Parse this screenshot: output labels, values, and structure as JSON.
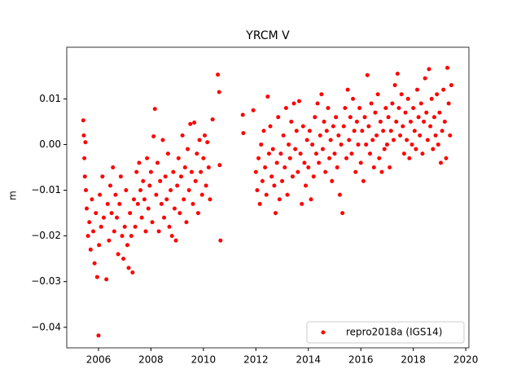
{
  "chart_data": {
    "type": "scatter",
    "title": "YRCM V",
    "y_label": "m",
    "xlim": [
      2004.79,
      2020.12
    ],
    "ylim": [
      -0.0445,
      0.0213
    ],
    "xticks": [
      2006,
      2008,
      2010,
      2012,
      2014,
      2016,
      2018,
      2020
    ],
    "yticks": [
      {
        "value": -0.04,
        "label": "−0.04"
      },
      {
        "value": -0.03,
        "label": "−0.03"
      },
      {
        "value": -0.02,
        "label": "−0.02"
      },
      {
        "value": -0.01,
        "label": "−0.01"
      },
      {
        "value": 0,
        "label": "0.00"
      },
      0.01
    ],
    "legend_position": "lower right",
    "x": [
      2005.42,
      2005.44,
      2005.46,
      2005.48,
      2005.5,
      2005.52,
      2005.55,
      2005.6,
      2005.65,
      2005.7,
      2005.75,
      2005.8,
      2005.85,
      2005.9,
      2005.95,
      2006.0,
      2006.02,
      2006.05,
      2006.1,
      2006.15,
      2006.2,
      2006.3,
      2006.35,
      2006.4,
      2006.45,
      2006.5,
      2006.55,
      2006.6,
      2006.65,
      2006.7,
      2006.75,
      2006.8,
      2006.85,
      2006.9,
      2006.95,
      2007.0,
      2007.05,
      2007.1,
      2007.15,
      2007.2,
      2007.25,
      2007.3,
      2007.35,
      2007.4,
      2007.45,
      2007.5,
      2007.55,
      2007.6,
      2007.65,
      2007.7,
      2007.75,
      2007.8,
      2007.85,
      2007.9,
      2007.95,
      2008.0,
      2008.05,
      2008.1,
      2008.15,
      2008.2,
      2008.25,
      2008.3,
      2008.35,
      2008.4,
      2008.45,
      2008.5,
      2008.55,
      2008.6,
      2008.65,
      2008.7,
      2008.75,
      2008.8,
      2008.85,
      2008.9,
      2008.95,
      2009.0,
      2009.05,
      2009.1,
      2009.15,
      2009.2,
      2009.25,
      2009.3,
      2009.35,
      2009.4,
      2009.45,
      2009.5,
      2009.55,
      2009.6,
      2009.65,
      2009.7,
      2009.75,
      2009.8,
      2009.85,
      2009.9,
      2009.95,
      2010.0,
      2010.05,
      2010.1,
      2010.15,
      2010.2,
      2010.25,
      2010.35,
      2010.55,
      2010.6,
      2010.62,
      2010.65,
      2011.5,
      2011.52,
      2011.9,
      2012.0,
      2012.05,
      2012.1,
      2012.15,
      2012.2,
      2012.25,
      2012.3,
      2012.35,
      2012.4,
      2012.45,
      2012.5,
      2012.55,
      2012.6,
      2012.65,
      2012.7,
      2012.75,
      2012.8,
      2012.85,
      2012.9,
      2012.95,
      2013.0,
      2013.05,
      2013.1,
      2013.15,
      2013.2,
      2013.25,
      2013.3,
      2013.35,
      2013.4,
      2013.45,
      2013.5,
      2013.55,
      2013.6,
      2013.65,
      2013.7,
      2013.75,
      2013.8,
      2013.85,
      2013.9,
      2013.95,
      2014.0,
      2014.05,
      2014.1,
      2014.15,
      2014.2,
      2014.25,
      2014.3,
      2014.35,
      2014.4,
      2014.45,
      2014.5,
      2014.55,
      2014.6,
      2014.65,
      2014.7,
      2014.75,
      2014.8,
      2014.85,
      2014.9,
      2014.95,
      2015.0,
      2015.05,
      2015.1,
      2015.15,
      2015.2,
      2015.25,
      2015.3,
      2015.35,
      2015.4,
      2015.45,
      2015.5,
      2015.55,
      2015.6,
      2015.65,
      2015.7,
      2015.75,
      2015.8,
      2015.85,
      2015.9,
      2015.95,
      2016.0,
      2016.05,
      2016.1,
      2016.15,
      2016.2,
      2016.25,
      2016.3,
      2016.35,
      2016.4,
      2016.45,
      2016.5,
      2016.55,
      2016.6,
      2016.65,
      2016.7,
      2016.75,
      2016.8,
      2016.85,
      2016.9,
      2016.95,
      2017.0,
      2017.05,
      2017.1,
      2017.15,
      2017.2,
      2017.25,
      2017.3,
      2017.35,
      2017.4,
      2017.45,
      2017.5,
      2017.55,
      2017.6,
      2017.65,
      2017.7,
      2017.75,
      2017.8,
      2017.85,
      2017.9,
      2017.95,
      2018.0,
      2018.05,
      2018.1,
      2018.15,
      2018.2,
      2018.25,
      2018.3,
      2018.35,
      2018.4,
      2018.45,
      2018.5,
      2018.55,
      2018.6,
      2018.65,
      2018.7,
      2018.75,
      2018.8,
      2018.85,
      2018.9,
      2018.95,
      2019.0,
      2019.05,
      2019.1,
      2019.15,
      2019.2,
      2019.25,
      2019.3,
      2019.35,
      2019.4,
      2019.45
    ],
    "series": [
      {
        "name": "repro2018a (IGS14)",
        "color": "#ff0000",
        "values": [
          0.0053,
          0.002,
          -0.003,
          -0.007,
          0.0005,
          -0.01,
          -0.014,
          -0.02,
          -0.017,
          -0.023,
          -0.012,
          -0.019,
          -0.026,
          -0.015,
          -0.029,
          -0.0418,
          -0.022,
          -0.011,
          -0.018,
          -0.007,
          -0.016,
          -0.0295,
          -0.013,
          -0.021,
          -0.009,
          -0.015,
          -0.005,
          -0.019,
          -0.011,
          -0.016,
          -0.024,
          -0.013,
          -0.007,
          -0.02,
          -0.025,
          -0.018,
          -0.01,
          -0.022,
          -0.027,
          -0.015,
          -0.02,
          -0.028,
          -0.012,
          -0.018,
          -0.006,
          -0.013,
          -0.004,
          -0.01,
          -0.016,
          -0.008,
          -0.012,
          -0.019,
          -0.003,
          -0.014,
          -0.009,
          -0.006,
          -0.017,
          0.0018,
          0.0078,
          -0.011,
          -0.004,
          -0.019,
          -0.008,
          -0.013,
          0.001,
          -0.016,
          -0.007,
          -0.012,
          -0.002,
          -0.018,
          -0.01,
          -0.02,
          -0.006,
          -0.014,
          -0.021,
          -0.009,
          -0.003,
          -0.015,
          -0.007,
          0.002,
          -0.012,
          -0.005,
          -0.017,
          -0.001,
          -0.01,
          0.0045,
          -0.006,
          -0.013,
          0.0048,
          -0.008,
          -0.002,
          -0.015,
          0.001,
          -0.006,
          -0.011,
          -0.003,
          0.002,
          -0.009,
          0.0005,
          -0.005,
          -0.012,
          0.0055,
          0.0153,
          0.0115,
          -0.0045,
          -0.021,
          0.0065,
          0.0025,
          0.0075,
          -0.006,
          -0.01,
          -0.003,
          -0.013,
          0.0,
          -0.008,
          0.003,
          -0.005,
          -0.011,
          0.0105,
          -0.002,
          0.004,
          -0.007,
          -0.001,
          -0.009,
          -0.015,
          -0.004,
          0.006,
          -0.012,
          -0.002,
          -0.008,
          0.002,
          -0.005,
          0.008,
          -0.011,
          0.0,
          -0.003,
          0.005,
          -0.007,
          0.009,
          -0.001,
          0.003,
          -0.006,
          0.0095,
          -0.002,
          -0.013,
          0.004,
          -0.004,
          -0.009,
          0.001,
          -0.005,
          0.003,
          -0.012,
          0.0,
          -0.007,
          0.006,
          -0.002,
          0.009,
          -0.004,
          0.002,
          0.011,
          -0.001,
          0.005,
          -0.006,
          0.003,
          0.008,
          -0.003,
          0.001,
          -0.008,
          0.004,
          -0.002,
          0.006,
          -0.005,
          0.002,
          -0.011,
          0.0,
          -0.015,
          0.004,
          0.008,
          -0.003,
          0.012,
          0.001,
          0.006,
          -0.002,
          0.01,
          0.003,
          -0.006,
          0.005,
          0.0,
          0.008,
          -0.004,
          0.003,
          -0.008,
          0.006,
          0.0,
          0.0152,
          0.004,
          -0.002,
          0.009,
          0.001,
          -0.005,
          0.007,
          0.002,
          0.011,
          -0.003,
          0.005,
          -0.006,
          0.003,
          -0.001,
          0.008,
          0.0,
          0.006,
          -0.005,
          0.003,
          0.009,
          0.001,
          0.013,
          0.005,
          0.0155,
          0.008,
          0.002,
          0.011,
          0.004,
          -0.002,
          0.007,
          0.001,
          0.01,
          -0.003,
          0.005,
          0.0,
          0.008,
          0.003,
          -0.001,
          0.012,
          0.006,
          0.002,
          0.009,
          -0.002,
          0.005,
          0.0145,
          0.007,
          0.001,
          0.0165,
          0.004,
          0.01,
          -0.001,
          0.006,
          0.002,
          0.011,
          0.0,
          0.007,
          -0.004,
          0.003,
          0.012,
          0.005,
          -0.003,
          0.0168,
          0.009,
          0.002,
          0.013
        ]
      }
    ]
  }
}
